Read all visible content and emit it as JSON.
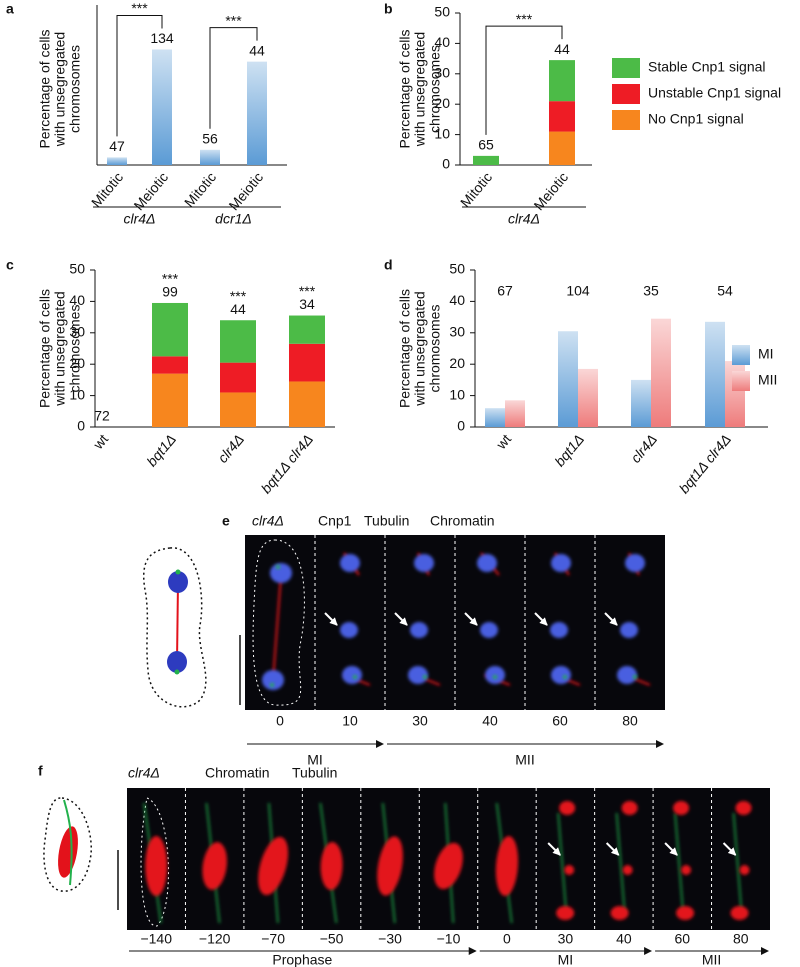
{
  "chart_data": [
    {
      "type": "bar",
      "panel": "a",
      "ylabel": [
        "Percentage of cells",
        "with unsegregated",
        "chromosomes"
      ],
      "categories": [
        "Mitotic",
        "Meiotic",
        "Mitotic",
        "Meiotic"
      ],
      "groups": [
        "clr4Δ",
        "dcr1Δ"
      ],
      "values": [
        2.5,
        38,
        5,
        34
      ],
      "color": "#5b9bd5",
      "gradient": true,
      "n": [
        47,
        134,
        56,
        44
      ],
      "n_position": "above",
      "significance": [
        "***",
        "***"
      ],
      "significance_style": "bracket",
      "ylim": [
        0,
        50
      ]
    },
    {
      "type": "stacked_bar",
      "panel": "b",
      "ylabel": [
        "Percentage of cells",
        "with unsegregated",
        "chromosomes"
      ],
      "categories": [
        "Mitotic",
        "Meiotic"
      ],
      "groups": [
        "clr4Δ"
      ],
      "series": [
        {
          "name": "No Cnp1 signal",
          "color": "#f7861e",
          "values": [
            0,
            11
          ]
        },
        {
          "name": "Unstable Cnp1 signal",
          "color": "#ee1c25",
          "values": [
            0,
            10
          ]
        },
        {
          "name": "Stable Cnp1 signal",
          "color": "#4cbb47",
          "values": [
            3,
            13.5
          ]
        }
      ],
      "n": [
        65,
        44
      ],
      "n_position": "above",
      "significance": [
        "***"
      ],
      "significance_style": "bracket",
      "legend": "right",
      "ylim": [
        0,
        50
      ],
      "yticks": [
        0,
        10,
        20,
        30,
        40,
        50
      ]
    },
    {
      "type": "stacked_bar",
      "panel": "c",
      "ylabel": [
        "Percentage of cells",
        "with unsegregated",
        "chromosomes"
      ],
      "categories": [
        "wt",
        "bqt1Δ",
        "clr4Δ",
        "bqt1Δ clr4Δ"
      ],
      "series": [
        {
          "color": "#f7861e",
          "values": [
            0,
            17,
            11,
            14.5
          ]
        },
        {
          "color": "#ee1c25",
          "values": [
            0,
            5.5,
            9.5,
            12
          ]
        },
        {
          "color": "#4cbb47",
          "values": [
            0,
            17,
            13.5,
            9
          ]
        }
      ],
      "n": [
        72,
        99,
        44,
        34
      ],
      "n_position": "above",
      "significance": [
        null,
        "***",
        "***",
        "***"
      ],
      "significance_style": "above",
      "ylim": [
        0,
        50
      ],
      "yticks": [
        0,
        10,
        20,
        30,
        40,
        50
      ]
    },
    {
      "type": "grouped_bar",
      "panel": "d",
      "ylabel": [
        "Percentage of cells",
        "with unsegregated",
        "chromosomes"
      ],
      "categories": [
        "wt",
        "bqt1Δ",
        "clr4Δ",
        "bqt1Δ clr4Δ"
      ],
      "series": [
        {
          "name": "MI",
          "color": "#5b9bd5",
          "values": [
            6,
            30.5,
            15,
            33.5
          ]
        },
        {
          "name": "MII",
          "color": "#ee7b7b",
          "values": [
            8.5,
            18.5,
            34.5,
            21
          ]
        }
      ],
      "gradient": true,
      "n": [
        67,
        104,
        35,
        54
      ],
      "n_position": "row",
      "legend": "right",
      "ylim": [
        0,
        50
      ],
      "yticks": [
        0,
        10,
        20,
        30,
        40,
        50
      ]
    }
  ],
  "microscopy": [
    {
      "panel": "e",
      "strain": "clr4Δ",
      "channels": [
        {
          "label": "Cnp1",
          "color": "#22b14c"
        },
        {
          "label": "Tubulin",
          "color": "#e3121b"
        },
        {
          "label": "Chromatin",
          "color": "#2d3bbf"
        }
      ],
      "times": [
        "0",
        "10",
        "30",
        "40",
        "60",
        "80"
      ],
      "phases": [
        "MI",
        "MII"
      ]
    },
    {
      "panel": "f",
      "strain": "clr4Δ",
      "channels": [
        {
          "label": "Chromatin",
          "color": "#e3121b"
        },
        {
          "label": "Tubulin",
          "color": "#22b14c"
        }
      ],
      "times": [
        "−140",
        "−120",
        "−70",
        "−50",
        "−30",
        "−10",
        "0",
        "30",
        "40",
        "60",
        "80"
      ],
      "phases": [
        "Prophase",
        "MI",
        "MII"
      ]
    }
  ]
}
